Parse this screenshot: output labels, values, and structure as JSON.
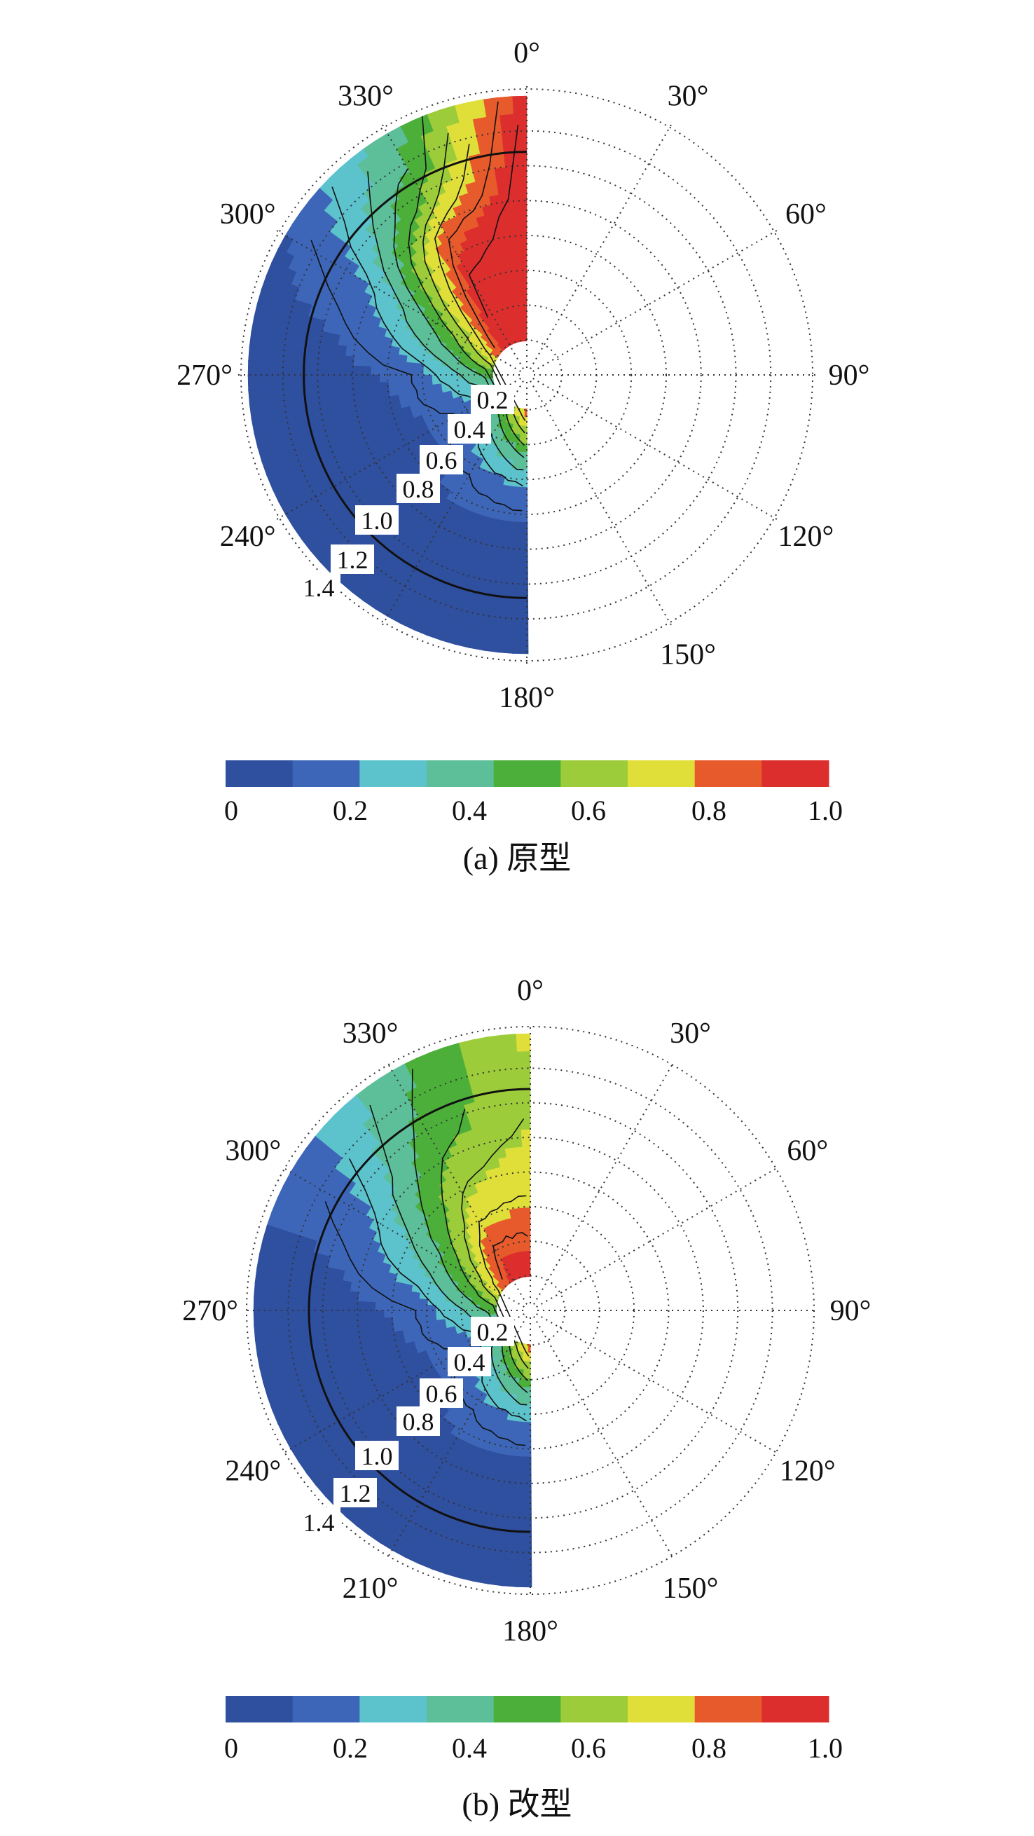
{
  "figure": {
    "colors": {
      "levels": [
        "#2f4f9f",
        "#3d66b8",
        "#5cc2cc",
        "#5cbf9a",
        "#4caf3a",
        "#9ccc3a",
        "#e0df3a",
        "#e75a2c",
        "#dd2e2e"
      ],
      "grid": "#333333",
      "contour": "#111111"
    },
    "colorbar_ticks": [
      "0",
      "0.2",
      "0.4",
      "0.6",
      "0.8",
      "1.0"
    ],
    "angle_labels_a": [
      "0°",
      "30°",
      "60°",
      "90°",
      "120°",
      "150°",
      "180°",
      "240°",
      "270°",
      "300°",
      "330°"
    ],
    "angle_labels_b": [
      "0°",
      "30°",
      "60°",
      "90°",
      "120°",
      "150°",
      "180°",
      "210°",
      "240°",
      "270°",
      "300°",
      "330°"
    ],
    "contour_labels": [
      "0.2",
      "0.4",
      "0.6",
      "0.8",
      "1.0",
      "1.2",
      "1.4"
    ]
  },
  "chart_data": [
    {
      "type": "heatmap",
      "subtype": "polar-contour",
      "caption": "(a) 原型",
      "theta_range_deg": [
        180,
        360
      ],
      "colorbar": {
        "min": 0,
        "max": 1.0,
        "ticks": [
          0,
          0.2,
          0.4,
          0.6,
          0.8,
          1.0
        ],
        "levels": 9
      },
      "contour_labels": [
        "0.2",
        "0.4",
        "0.6",
        "0.8",
        "1.0",
        "1.2",
        "1.4"
      ],
      "level_bands_by_theta": [
        {
          "theta": 360,
          "values": [
            1.0,
            1.0,
            1.0,
            1.0,
            1.0,
            1.0,
            0.95
          ]
        },
        {
          "theta": 330,
          "values": [
            1.0,
            1.0,
            0.95,
            0.85,
            0.6,
            0.45,
            0.4
          ]
        },
        {
          "theta": 300,
          "values": [
            0.8,
            0.6,
            0.45,
            0.3,
            0.2,
            0.15,
            0.1
          ]
        },
        {
          "theta": 270,
          "values": [
            0.5,
            0.3,
            0.15,
            0.1,
            0.05,
            0.05,
            0.05
          ]
        },
        {
          "theta": 240,
          "values": [
            0.3,
            0.15,
            0.1,
            0.05,
            0.05,
            0.05,
            0.05
          ]
        },
        {
          "theta": 210,
          "values": [
            0.6,
            0.3,
            0.15,
            0.1,
            0.05,
            0.05,
            0.05
          ]
        },
        {
          "theta": 180,
          "values": [
            0.85,
            0.5,
            0.2,
            0.1,
            0.05,
            0.05,
            0.05
          ]
        }
      ]
    },
    {
      "type": "heatmap",
      "subtype": "polar-contour",
      "caption": "(b) 改型",
      "theta_range_deg": [
        180,
        360
      ],
      "colorbar": {
        "min": 0,
        "max": 1.0,
        "ticks": [
          0,
          0.2,
          0.4,
          0.6,
          0.8,
          1.0
        ],
        "levels": 9
      },
      "contour_labels": [
        "0.2",
        "0.4",
        "0.6",
        "0.8",
        "1.0",
        "1.2",
        "1.4"
      ],
      "level_bands_by_theta": [
        {
          "theta": 360,
          "values": [
            0.95,
            0.85,
            0.75,
            0.7,
            0.65,
            0.65,
            0.7
          ]
        },
        {
          "theta": 330,
          "values": [
            0.95,
            0.85,
            0.7,
            0.6,
            0.5,
            0.45,
            0.4
          ]
        },
        {
          "theta": 300,
          "values": [
            0.75,
            0.55,
            0.4,
            0.3,
            0.2,
            0.15,
            0.15
          ]
        },
        {
          "theta": 270,
          "values": [
            0.5,
            0.3,
            0.15,
            0.1,
            0.05,
            0.05,
            0.05
          ]
        },
        {
          "theta": 240,
          "values": [
            0.3,
            0.15,
            0.1,
            0.05,
            0.05,
            0.05,
            0.05
          ]
        },
        {
          "theta": 210,
          "values": [
            0.6,
            0.3,
            0.15,
            0.1,
            0.05,
            0.05,
            0.05
          ]
        },
        {
          "theta": 180,
          "values": [
            0.85,
            0.5,
            0.2,
            0.1,
            0.05,
            0.05,
            0.05
          ]
        }
      ]
    }
  ]
}
